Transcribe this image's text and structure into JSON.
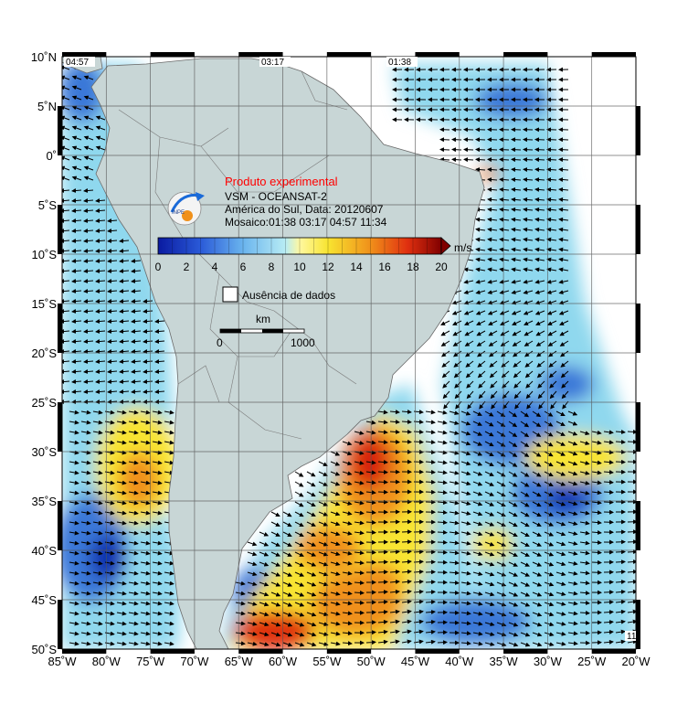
{
  "map": {
    "lat_labels": [
      "10˚N",
      "5˚N",
      "0˚",
      "5˚S",
      "10˚S",
      "15˚S",
      "20˚S",
      "25˚S",
      "30˚S",
      "35˚S",
      "40˚S",
      "45˚S",
      "50˚S"
    ],
    "lon_labels": [
      "85˚W",
      "80˚W",
      "75˚W",
      "70˚W",
      "65˚W",
      "60˚W",
      "55˚W",
      "50˚W",
      "45˚W",
      "40˚W",
      "35˚W",
      "30˚W",
      "25˚W",
      "20˚W"
    ],
    "pass_times": [
      "04:57",
      "03:17",
      "01:38"
    ],
    "corner_tag": "11"
  },
  "legend": {
    "title": "Produto experimental",
    "line1": "VSM - OCEANSAT-2",
    "line2": "América do Sul, Data: 20120607",
    "line3": "Mosaico:01:38 03:17 04:57 11:34",
    "logo_text": "INPE",
    "colorbar_unit": "m/s",
    "colorbar_ticks": [
      "0",
      "2",
      "4",
      "6",
      "8",
      "10",
      "12",
      "14",
      "16",
      "18",
      "20"
    ],
    "no_data_label": "Ausência de dados",
    "scale_unit": "km",
    "scale_ticks": [
      "0",
      "1000"
    ]
  },
  "colors": {
    "land": "#c8d6d6",
    "ocean_light": "#8fd8ee",
    "blue": "#3a78d8",
    "dark_blue": "#1030b0",
    "yellow": "#f8e430",
    "orange": "#f0901a",
    "red": "#d82010"
  }
}
